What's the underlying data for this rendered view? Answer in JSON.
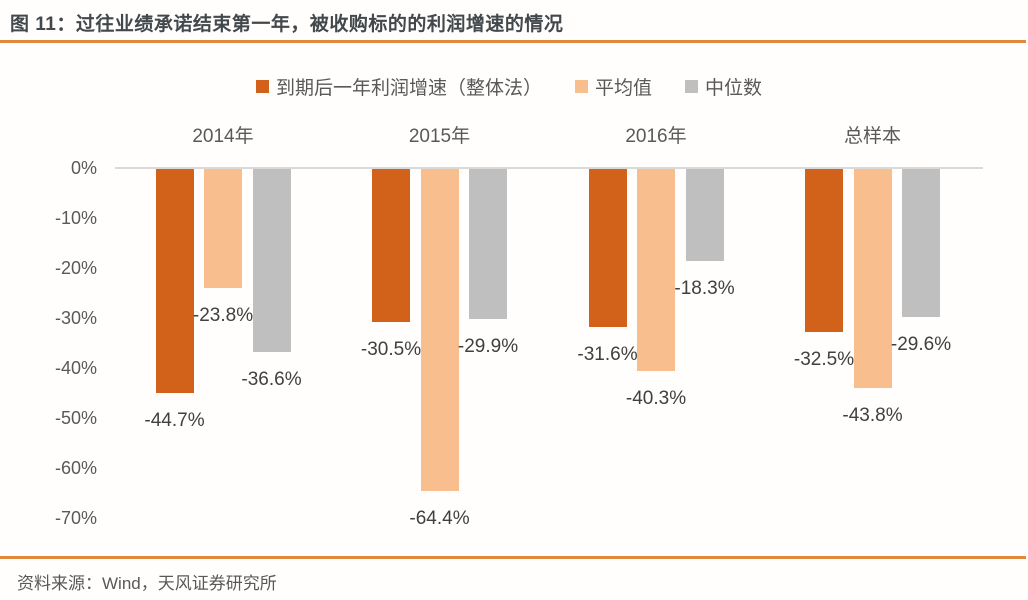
{
  "header": {
    "title": "图 11：过往业绩承诺结束第一年，被收购标的的利润增速的情况"
  },
  "footer": {
    "source": "资料来源：Wind，天风证券研究所"
  },
  "colors": {
    "accent_rule": "#e0883b",
    "series_growth": "#d2611a",
    "series_mean": "#f9be8d",
    "series_median": "#bfbfbf",
    "axis_line": "#d9d9d9",
    "tick_text": "#595959",
    "data_label_text": "#404040"
  },
  "chart_data": {
    "type": "bar",
    "title": "图 11：过往业绩承诺结束第一年，被收购标的的利润增速的情况",
    "categories": [
      "2014年",
      "2015年",
      "2016年",
      "总样本"
    ],
    "series": [
      {
        "name": "到期后一年利润增速（整体法）",
        "color": "#d2611a",
        "values": [
          -44.7,
          -30.5,
          -31.6,
          -32.5
        ]
      },
      {
        "name": "平均值",
        "color": "#f9be8d",
        "values": [
          -23.8,
          -64.4,
          -40.3,
          -43.8
        ]
      },
      {
        "name": "中位数",
        "color": "#bfbfbf",
        "values": [
          -36.6,
          -29.9,
          -18.3,
          -29.6
        ]
      }
    ],
    "y_ticks": [
      "0%",
      "-10%",
      "-20%",
      "-30%",
      "-40%",
      "-50%",
      "-60%",
      "-70%"
    ],
    "ylim": [
      -70,
      0
    ],
    "value_suffix": "%",
    "data_labels": "outside-end",
    "legend_position": "top",
    "grid": false,
    "xlabel": "",
    "ylabel": ""
  }
}
